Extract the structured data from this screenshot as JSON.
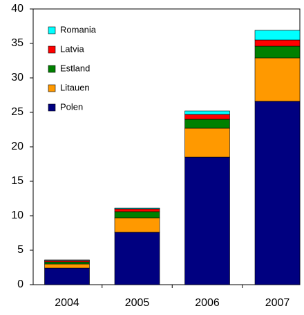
{
  "chart_data": {
    "type": "stacked_bar",
    "categories": [
      "2004",
      "2005",
      "2006",
      "2007"
    ],
    "series": [
      {
        "name": "Polen",
        "color": "#000080",
        "values": [
          2.4,
          7.6,
          18.5,
          26.6
        ]
      },
      {
        "name": "Litauen",
        "color": "#ff9900",
        "values": [
          0.6,
          2.1,
          4.2,
          6.3
        ]
      },
      {
        "name": "Estland",
        "color": "#008000",
        "values": [
          0.3,
          0.9,
          1.3,
          1.7
        ]
      },
      {
        "name": "Latvia",
        "color": "#ff0000",
        "values": [
          0.2,
          0.4,
          0.7,
          0.9
        ]
      },
      {
        "name": "Romania",
        "color": "#00ffff",
        "values": [
          0.1,
          0.1,
          0.5,
          1.4
        ]
      }
    ],
    "ylim": [
      0,
      40
    ],
    "yticks": [
      0,
      5,
      10,
      15,
      20,
      25,
      30,
      35,
      40
    ],
    "legend": "upper left"
  }
}
